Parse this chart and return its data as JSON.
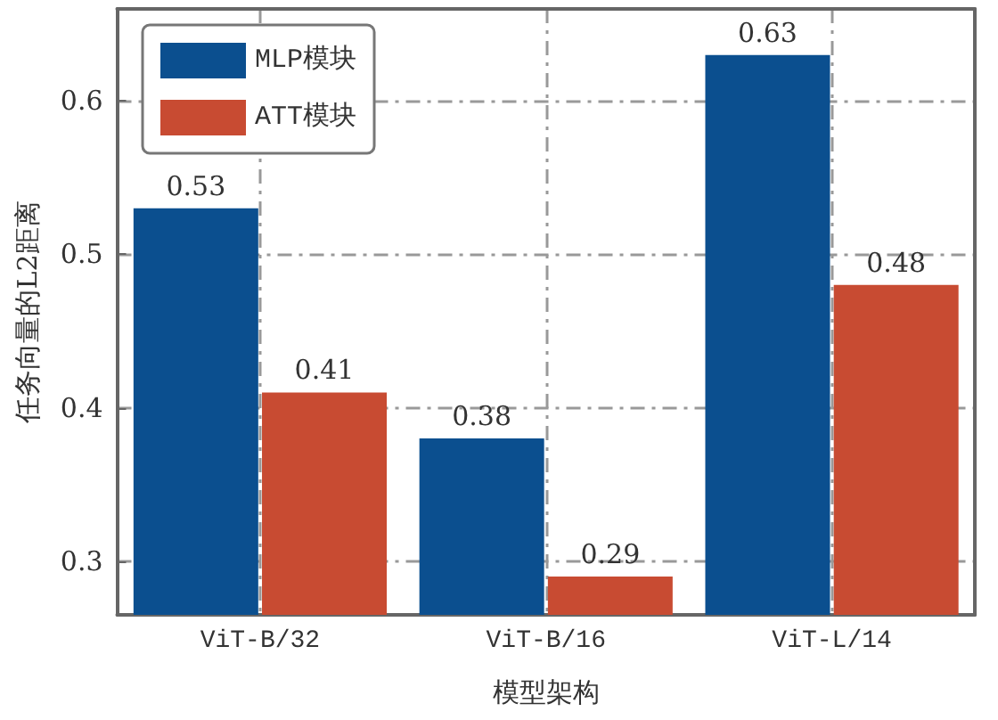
{
  "chart_data": {
    "type": "bar",
    "xlabel": "模型架构",
    "ylabel": "任务向量的L2距离",
    "categories": [
      "ViT-B/32",
      "ViT-B/16",
      "ViT-L/14"
    ],
    "series": [
      {
        "name": "MLP模块",
        "color": "#0b4f8f",
        "values": [
          0.53,
          0.38,
          0.63
        ]
      },
      {
        "name": "ATT模块",
        "color": "#c84b32",
        "values": [
          0.41,
          0.29,
          0.48
        ]
      }
    ],
    "ylim": [
      0.265,
      0.66
    ],
    "yticks": [
      0.3,
      0.4,
      0.5,
      0.6
    ],
    "grid": true,
    "legend": "top left",
    "data_labels": true
  }
}
